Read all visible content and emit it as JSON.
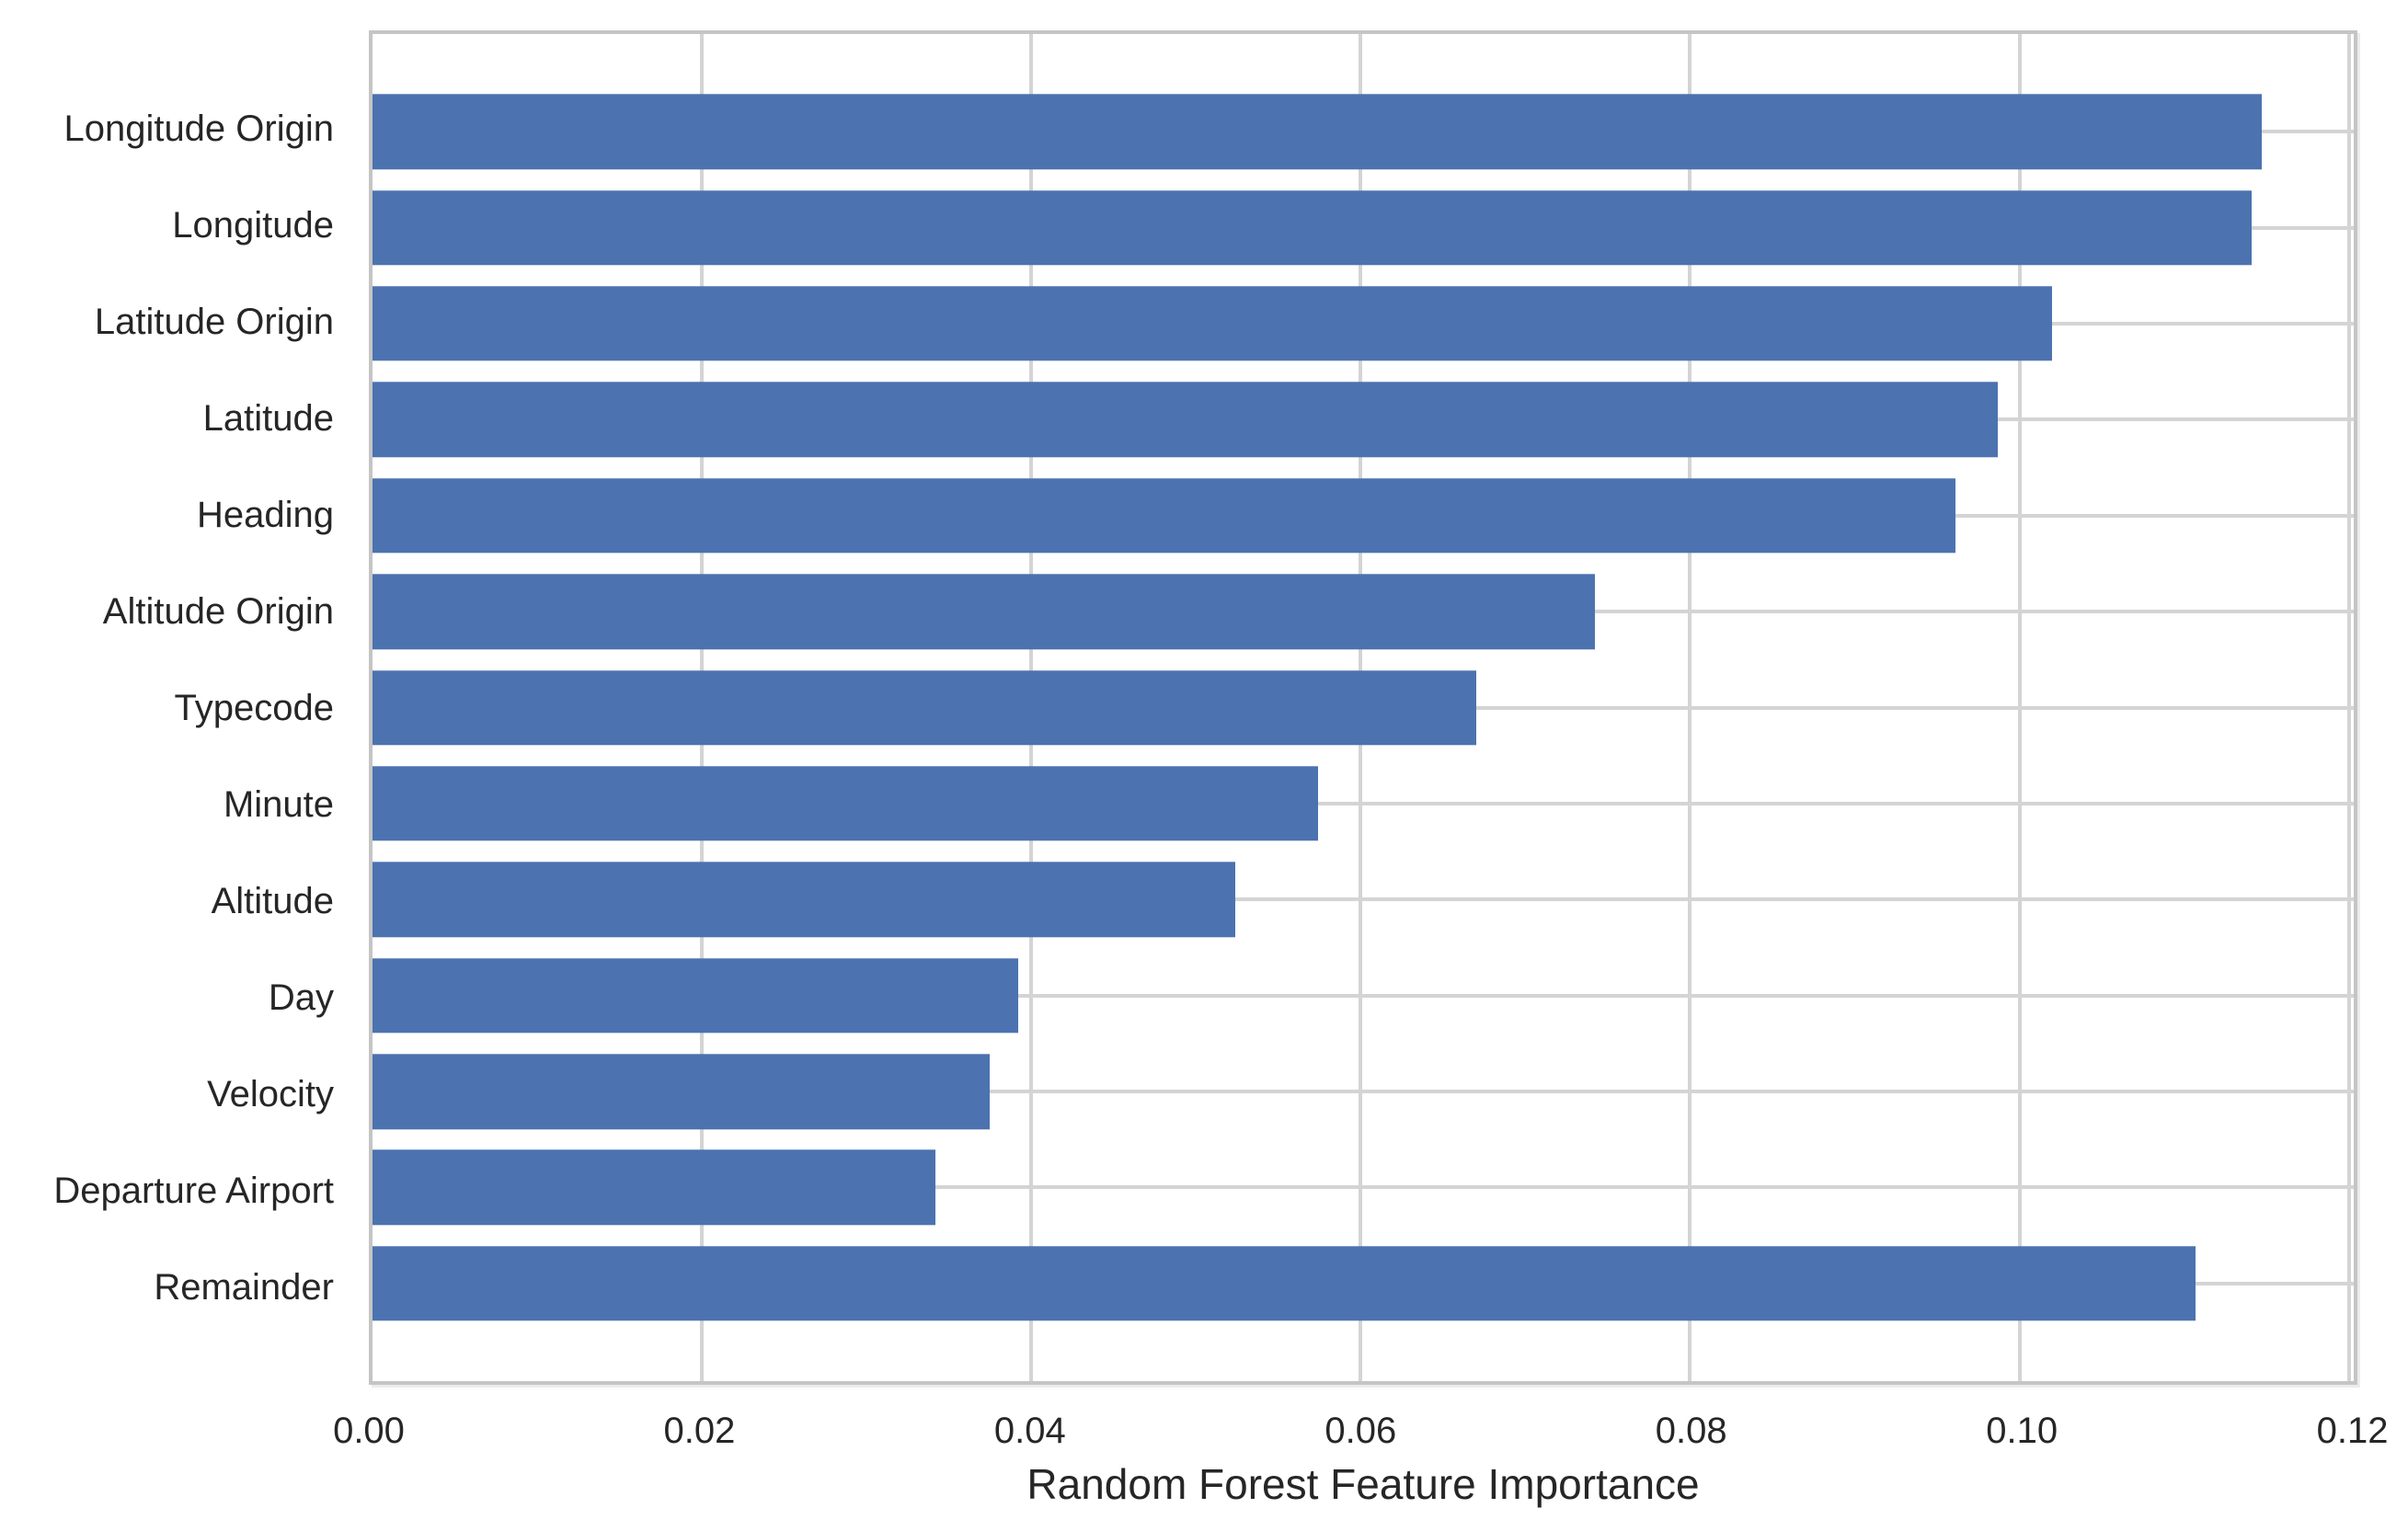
{
  "chart_data": {
    "type": "bar",
    "orientation": "horizontal",
    "title": "",
    "xlabel": "Random Forest Feature Importance",
    "ylabel": "",
    "categories": [
      "Longitude Origin",
      "Longitude",
      "Latitude Origin",
      "Latitude",
      "Heading",
      "Altitude Origin",
      "Typecode",
      "Minute",
      "Altitude",
      "Day",
      "Velocity",
      "Departure Airport",
      "Remainder"
    ],
    "values": [
      0.1147,
      0.1141,
      0.102,
      0.0987,
      0.0961,
      0.0742,
      0.067,
      0.0574,
      0.0524,
      0.0392,
      0.0375,
      0.0342,
      0.1107
    ],
    "x_ticks": [
      {
        "value": 0.0,
        "label": "0.00"
      },
      {
        "value": 0.02,
        "label": "0.02"
      },
      {
        "value": 0.04,
        "label": "0.04"
      },
      {
        "value": 0.06,
        "label": "0.06"
      },
      {
        "value": 0.08,
        "label": "0.08"
      },
      {
        "value": 0.1,
        "label": "0.10"
      },
      {
        "value": 0.12,
        "label": "0.12"
      }
    ],
    "xlim": [
      0,
      0.1203
    ],
    "grid": true,
    "legend_position": "none",
    "bar_color": "#4c72b0",
    "grid_color": "#d4d4d4",
    "spine_color": "#c5c5c5",
    "text_color": "#262626",
    "background_color": "#ffffff"
  }
}
